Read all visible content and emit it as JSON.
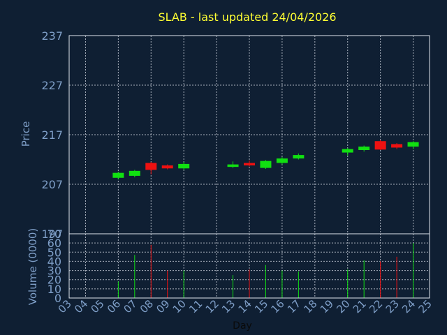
{
  "chart_data": {
    "type": "candlestick",
    "title": "SLAB - last updated 24/04/2026",
    "price_panel": {
      "ylabel": "Price",
      "ylim": [
        197,
        237
      ],
      "yticks": [
        197,
        207,
        217,
        227,
        237
      ],
      "candles": [
        {
          "day": 6,
          "open": 208.3,
          "close": 209.3,
          "high": 209.5,
          "low": 208.0
        },
        {
          "day": 7,
          "open": 208.7,
          "close": 209.7,
          "high": 209.9,
          "low": 208.4
        },
        {
          "day": 8,
          "open": 211.3,
          "close": 209.9,
          "high": 211.5,
          "low": 209.0
        },
        {
          "day": 9,
          "open": 210.8,
          "close": 210.2,
          "high": 211.0,
          "low": 210.0
        },
        {
          "day": 10,
          "open": 210.2,
          "close": 211.1,
          "high": 211.5,
          "low": 209.9
        },
        {
          "day": 13,
          "open": 210.5,
          "close": 211.0,
          "high": 211.6,
          "low": 210.3
        },
        {
          "day": 14,
          "open": 211.3,
          "close": 210.8,
          "high": 211.8,
          "low": 210.6
        },
        {
          "day": 15,
          "open": 210.3,
          "close": 211.7,
          "high": 211.9,
          "low": 210.1
        },
        {
          "day": 16,
          "open": 211.3,
          "close": 212.2,
          "high": 212.5,
          "low": 211.0
        },
        {
          "day": 17,
          "open": 212.2,
          "close": 212.9,
          "high": 213.2,
          "low": 212.0
        },
        {
          "day": 20,
          "open": 213.4,
          "close": 214.1,
          "high": 214.3,
          "low": 212.8
        },
        {
          "day": 21,
          "open": 213.9,
          "close": 214.6,
          "high": 214.8,
          "low": 213.6
        },
        {
          "day": 22,
          "open": 215.7,
          "close": 214.0,
          "high": 215.9,
          "low": 213.9
        },
        {
          "day": 23,
          "open": 215.1,
          "close": 214.4,
          "high": 215.3,
          "low": 214.1
        },
        {
          "day": 24,
          "open": 214.6,
          "close": 215.5,
          "high": 215.7,
          "low": 214.1
        }
      ]
    },
    "volume_panel": {
      "ylabel": "Volume (0000)",
      "ylim": [
        0,
        70
      ],
      "yticks": [
        0,
        10,
        20,
        30,
        40,
        50,
        60,
        70
      ],
      "bars": [
        {
          "day": 6,
          "value": 18,
          "dir": "up"
        },
        {
          "day": 7,
          "value": 47,
          "dir": "up"
        },
        {
          "day": 8,
          "value": 58,
          "dir": "down"
        },
        {
          "day": 9,
          "value": 30,
          "dir": "down"
        },
        {
          "day": 10,
          "value": 30,
          "dir": "up"
        },
        {
          "day": 13,
          "value": 25,
          "dir": "up"
        },
        {
          "day": 14,
          "value": 31,
          "dir": "down"
        },
        {
          "day": 15,
          "value": 36,
          "dir": "up"
        },
        {
          "day": 16,
          "value": 30,
          "dir": "up"
        },
        {
          "day": 17,
          "value": 29,
          "dir": "up"
        },
        {
          "day": 20,
          "value": 31,
          "dir": "up"
        },
        {
          "day": 21,
          "value": 41,
          "dir": "up"
        },
        {
          "day": 22,
          "value": 40,
          "dir": "down"
        },
        {
          "day": 23,
          "value": 45,
          "dir": "down"
        },
        {
          "day": 24,
          "value": 60,
          "dir": "up"
        }
      ]
    },
    "xaxis": {
      "xlabel": "Day",
      "xlim": [
        3,
        25
      ],
      "ticks": [
        "03",
        "04",
        "05",
        "06",
        "07",
        "08",
        "09",
        "10",
        "11",
        "12",
        "13",
        "14",
        "15",
        "16",
        "17",
        "18",
        "19",
        "20",
        "21",
        "22",
        "23",
        "24",
        "25"
      ]
    },
    "grid": true,
    "colors": {
      "background": "#0f1f33",
      "title": "#ffff33",
      "axis_text": "#7f9fc8",
      "up": "#11e011",
      "down": "#ee1111",
      "grid": "#cfd6e0",
      "frame": "#dfe6ee"
    }
  }
}
